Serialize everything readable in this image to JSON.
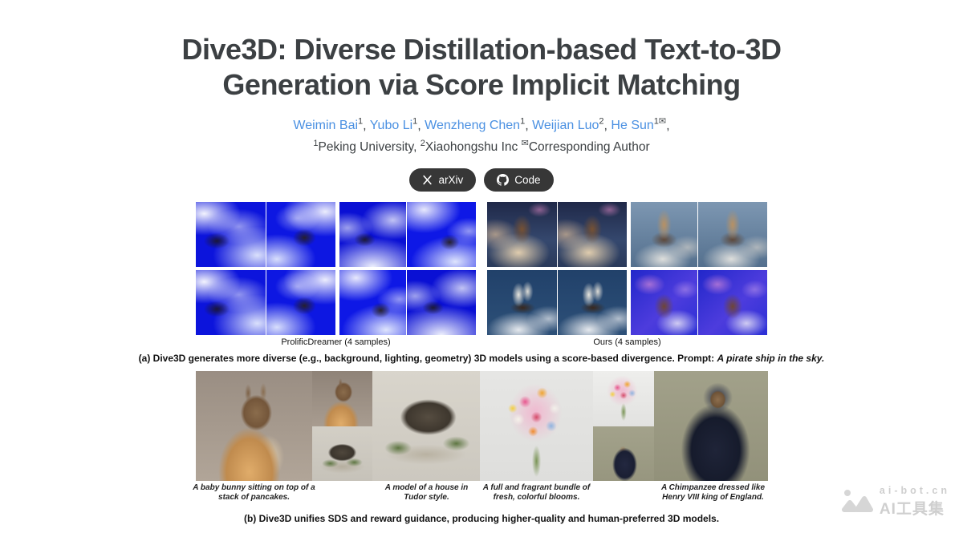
{
  "page": {
    "title_line1": "Dive3D: Diverse Distillation-based Text-to-3D",
    "title_line2": "Generation via Score Implicit Matching"
  },
  "authors": {
    "list": [
      {
        "name": "Weimin Bai",
        "sup": "1"
      },
      {
        "name": "Yubo Li",
        "sup": "1"
      },
      {
        "name": "Wenzheng Chen",
        "sup": "1"
      },
      {
        "name": "Weijian Luo",
        "sup": "2"
      },
      {
        "name": "He Sun",
        "sup": "1✉"
      }
    ],
    "separator": ", ",
    "trailing": ","
  },
  "affiliations": {
    "sup1": "1",
    "org1": "Peking University, ",
    "sup2": "2",
    "org2": "Xiaohongshu Inc ",
    "corr_sup": "✉",
    "corr": "Corresponding Author"
  },
  "buttons": {
    "arxiv": "arXiv",
    "code": "Code"
  },
  "figure_a": {
    "panels": [
      {
        "id": "pd",
        "label": "ProlificDreamer (4 samples)"
      },
      {
        "id": "ou",
        "label": "Ours (4 samples)"
      }
    ],
    "caption_prefix": "(a) Dive3D generates more diverse (e.g., background, lighting, geometry) 3D models using a score-based divergence. Prompt: ",
    "caption_prompt": "A pirate ship in the sky."
  },
  "figure_b": {
    "prompts": [
      "A baby bunny sitting on top of a stack of pancakes.",
      "A model of a house in Tudor style.",
      "A full and fragrant bundle of fresh, colorful blooms.",
      "A Chimpanzee dressed like Henry VIII king of England."
    ],
    "caption": "(b) Dive3D unifies SDS and reward guidance, producing higher-quality and human-preferred 3D models."
  },
  "watermark": {
    "line1": "ai-bot.cn",
    "line2": "AI工具集"
  },
  "colors": {
    "link_blue": "#4a90e2",
    "title_grey": "#3c4043",
    "button_bg": "#373737",
    "prolific_blue": "#0c14dc",
    "watermark_grey": "#cfcfcf"
  }
}
